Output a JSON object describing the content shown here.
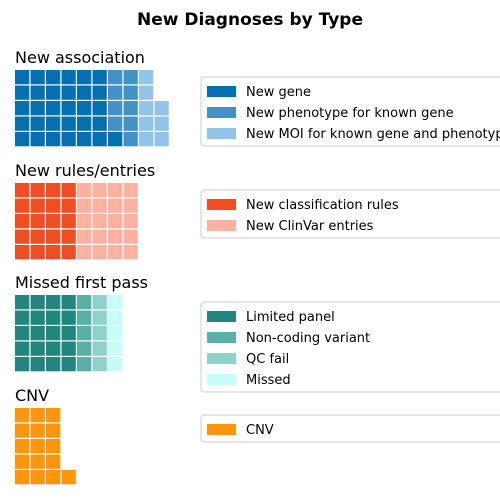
{
  "chart_data": {
    "type": "waffle",
    "title": "New Diagnoses by Type",
    "panels": [
      {
        "name": "New association",
        "grid_rows": 5,
        "series": [
          {
            "name": "New gene",
            "value": 31,
            "color": "#0570b0"
          },
          {
            "name": "New phenotype for known gene",
            "value": 9,
            "color": "#4292c6"
          },
          {
            "name": "New MOI for known gene and phenotype",
            "value": 8,
            "color": "#91c4e8"
          }
        ]
      },
      {
        "name": "New rules/entries",
        "grid_rows": 5,
        "series": [
          {
            "name": "New classification rules",
            "value": 20,
            "color": "#ef4e23"
          },
          {
            "name": "New ClinVar entries",
            "value": 20,
            "color": "#fcb29e"
          }
        ]
      },
      {
        "name": "Missed first pass",
        "grid_rows": 5,
        "series": [
          {
            "name": "Limited panel",
            "value": 20,
            "color": "#238580"
          },
          {
            "name": "Non-coding variant",
            "value": 5,
            "color": "#5aafa8"
          },
          {
            "name": "QC fail",
            "value": 5,
            "color": "#8ed2cc"
          },
          {
            "name": "Missed",
            "value": 5,
            "color": "#c4fffa"
          }
        ]
      },
      {
        "name": "CNV",
        "grid_rows": 5,
        "series": [
          {
            "name": "CNV",
            "value": 16,
            "color": "#ff950e"
          }
        ]
      }
    ]
  }
}
